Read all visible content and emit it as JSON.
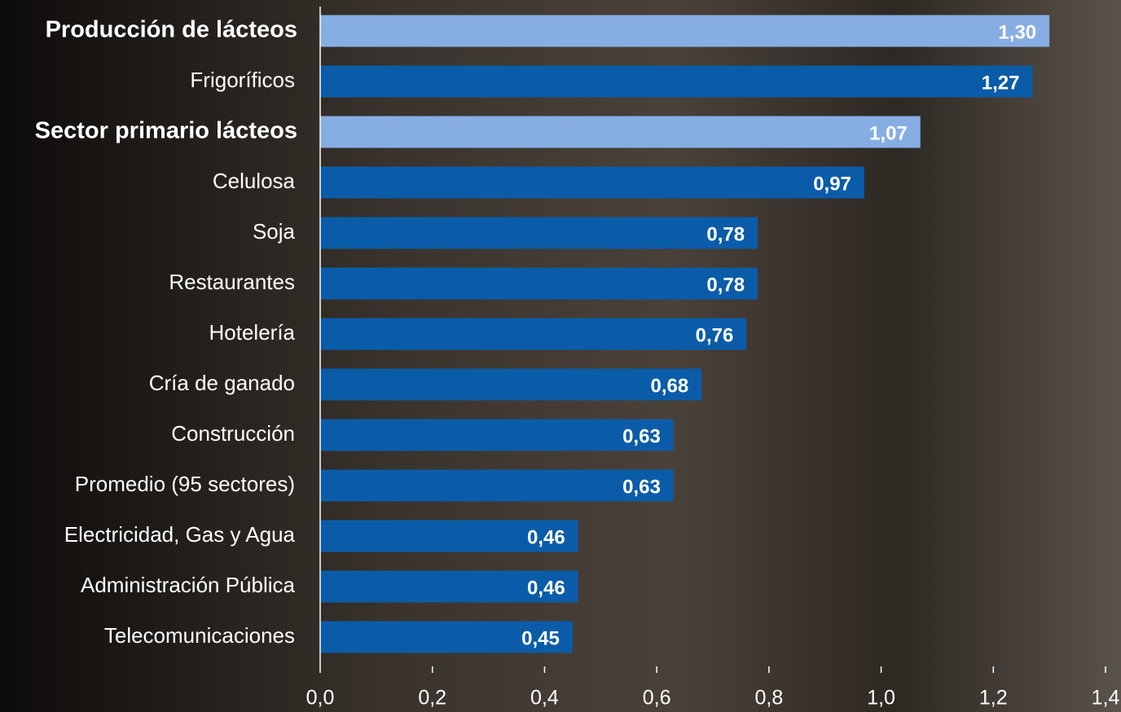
{
  "chart_data": {
    "type": "bar",
    "orientation": "horizontal",
    "categories": [
      "Producción de lácteos",
      "Frigoríficos",
      "Sector primario lácteos",
      "Celulosa",
      "Soja",
      "Restaurantes",
      "Hotelería",
      "Cría de ganado",
      "Construcción",
      "Promedio (95 sectores)",
      "Electricidad, Gas y Agua",
      "Administración Pública",
      "Telecomunicaciones"
    ],
    "values": [
      1.3,
      1.27,
      1.07,
      0.97,
      0.78,
      0.78,
      0.76,
      0.68,
      0.63,
      0.63,
      0.46,
      0.46,
      0.45
    ],
    "value_labels": [
      "1,30",
      "1,27",
      "1,07",
      "0,97",
      "0,78",
      "0,78",
      "0,76",
      "0,68",
      "0,63",
      "0,63",
      "0,46",
      "0,46",
      "0,45"
    ],
    "colors": [
      "#86aee3",
      "#0b5ca8",
      "#86aee3",
      "#0b5ca8",
      "#0b5ca8",
      "#0b5ca8",
      "#0b5ca8",
      "#0b5ca8",
      "#0b5ca8",
      "#0b5ca8",
      "#0b5ca8",
      "#0b5ca8",
      "#0b5ca8"
    ],
    "bold_categories": [
      true,
      false,
      true,
      false,
      false,
      false,
      false,
      false,
      false,
      false,
      false,
      false,
      false
    ],
    "xlim": [
      0,
      1.4
    ],
    "xticks": [
      {
        "value": 0,
        "label": "0,0"
      },
      {
        "value": 0.2,
        "label": "0,2"
      },
      {
        "value": 0.4,
        "label": "0,4"
      },
      {
        "value": 0.6,
        "label": "0,6"
      },
      {
        "value": 0.8,
        "label": "0,8"
      },
      {
        "value": 1.0,
        "label": "1,0"
      },
      {
        "value": 1.2,
        "label": "1,2"
      },
      {
        "value": 1.4,
        "label": "1,4"
      }
    ],
    "grid": false
  }
}
